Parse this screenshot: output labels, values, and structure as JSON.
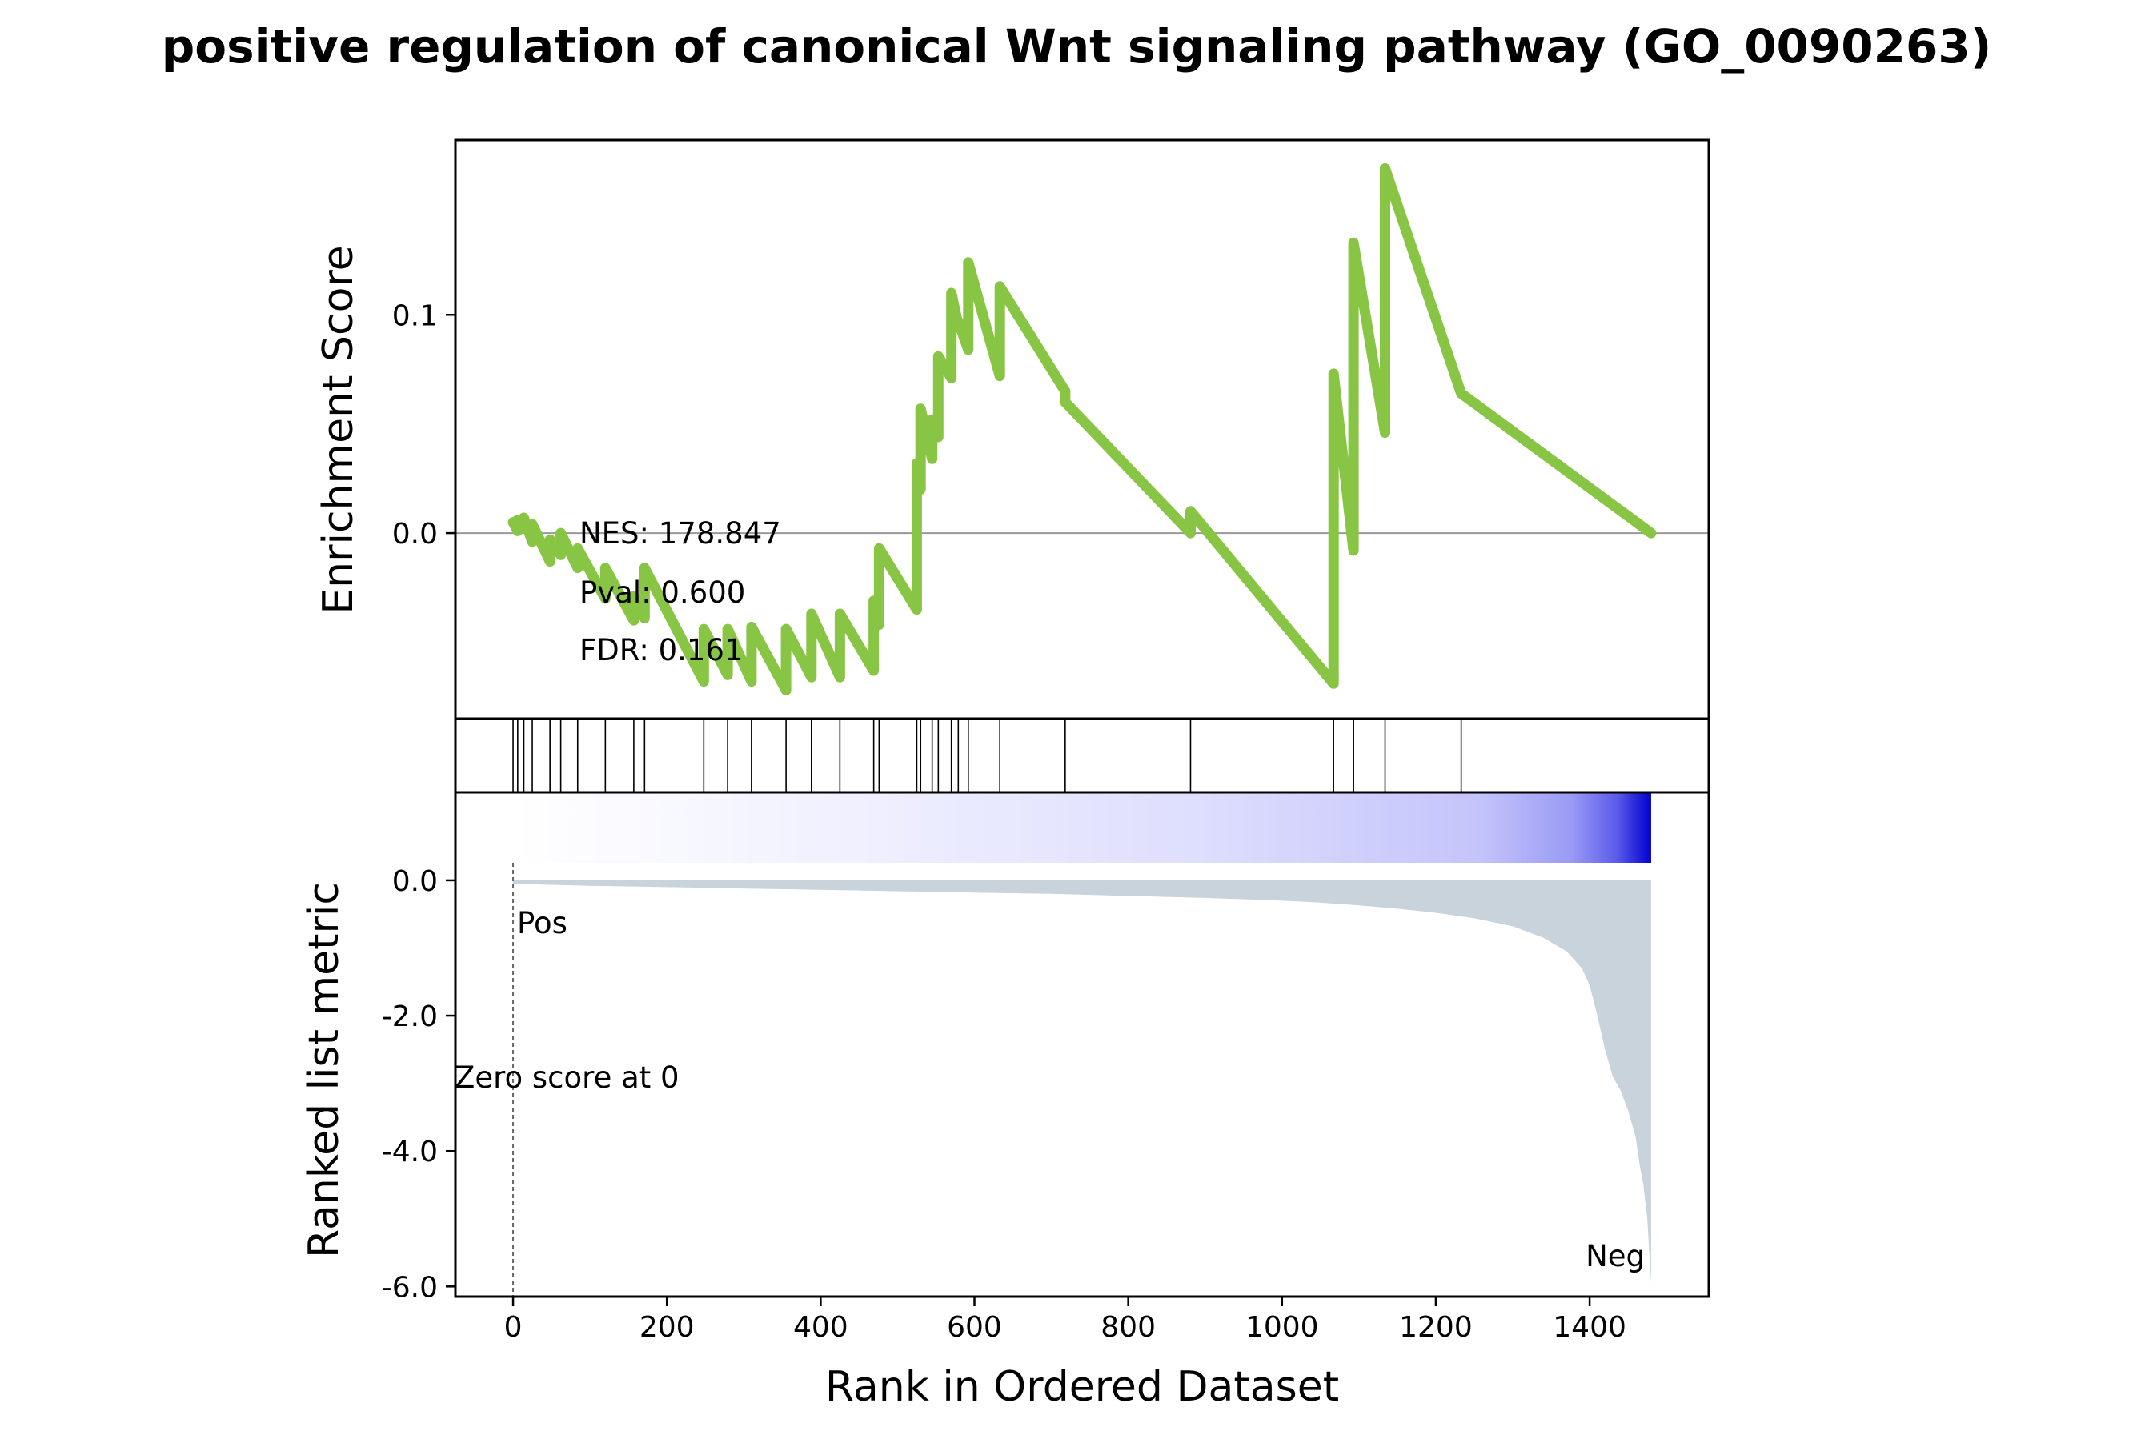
{
  "chart_data": {
    "type": "line",
    "title": "positive regulation of canonical Wnt signaling pathway (GO_0090263)",
    "xlabel": "Rank in Ordered Dataset",
    "xlim": [
      -75,
      1555
    ],
    "x_ticks": [
      0,
      200,
      400,
      600,
      800,
      1000,
      1200,
      1400
    ],
    "x_tick_labels": [
      "0",
      "200",
      "400",
      "600",
      "800",
      "1000",
      "1200",
      "1400"
    ],
    "n_genes": 1480,
    "enrichment": {
      "ylabel": "Enrichment Score",
      "ylim": [
        -0.085,
        0.18
      ],
      "y_ticks": [
        0.0,
        0.1
      ],
      "y_tick_labels": [
        "0.0",
        "0.1"
      ],
      "color": "#88c544",
      "zero_line_color": "#999999",
      "x": [
        0,
        6,
        6,
        14,
        14,
        25,
        25,
        48,
        48,
        62,
        62,
        84,
        84,
        120,
        120,
        157,
        157,
        171,
        171,
        248,
        248,
        279,
        279,
        310,
        310,
        355,
        355,
        388,
        388,
        425,
        425,
        469,
        469,
        476,
        476,
        525,
        525,
        530,
        530,
        545,
        545,
        553,
        553,
        570,
        570,
        579,
        579,
        592,
        592,
        633,
        633,
        718,
        718,
        881,
        881,
        1067,
        1067,
        1093,
        1093,
        1134,
        1134,
        1233,
        1233,
        1480
      ],
      "y": [
        0.005,
        0.001,
        0.006,
        0.002,
        0.007,
        -0.004,
        0.004,
        -0.013,
        -0.003,
        -0.01,
        0.0,
        -0.016,
        -0.007,
        -0.03,
        -0.016,
        -0.04,
        -0.029,
        -0.039,
        -0.016,
        -0.068,
        -0.044,
        -0.065,
        -0.044,
        -0.068,
        -0.043,
        -0.072,
        -0.044,
        -0.066,
        -0.037,
        -0.066,
        -0.037,
        -0.063,
        -0.031,
        -0.042,
        -0.007,
        -0.035,
        0.032,
        0.02,
        0.057,
        0.034,
        0.052,
        0.044,
        0.081,
        0.071,
        0.11,
        0.095,
        0.097,
        0.084,
        0.124,
        0.072,
        0.113,
        0.065,
        0.06,
        0.0,
        0.01,
        -0.069,
        0.073,
        -0.008,
        0.133,
        0.046,
        0.167,
        0.064,
        0.064,
        0.0
      ],
      "stats": [
        "NES: 178.847",
        "Pval: 0.600",
        "FDR: 0.161"
      ]
    },
    "hits": {
      "positions": [
        0,
        6,
        14,
        25,
        48,
        62,
        84,
        120,
        157,
        171,
        248,
        279,
        310,
        355,
        388,
        425,
        469,
        476,
        525,
        530,
        545,
        553,
        570,
        579,
        592,
        633,
        718,
        881,
        1067,
        1093,
        1134,
        1233
      ]
    },
    "ranked_metric": {
      "ylabel": "Ranked list metric",
      "ylim": [
        -6.15,
        1.3
      ],
      "y_ticks": [
        0.0,
        -2.0,
        -4.0,
        -6.0
      ],
      "y_tick_labels": [
        "0.0",
        "-2.0",
        "-4.0",
        "-6.0"
      ],
      "fill_color": "#c8d3dc",
      "colorbar_low": "#ffffff",
      "colorbar_high": "#0000cd",
      "x": [
        0,
        100,
        200,
        300,
        400,
        500,
        600,
        700,
        800,
        900,
        1000,
        1050,
        1100,
        1150,
        1200,
        1250,
        1300,
        1340,
        1370,
        1390,
        1400,
        1410,
        1420,
        1430,
        1440,
        1450,
        1460,
        1465,
        1470,
        1475,
        1480
      ],
      "values": [
        -0.05,
        -0.08,
        -0.1,
        -0.12,
        -0.14,
        -0.16,
        -0.18,
        -0.2,
        -0.23,
        -0.26,
        -0.3,
        -0.33,
        -0.37,
        -0.42,
        -0.48,
        -0.56,
        -0.68,
        -0.85,
        -1.05,
        -1.3,
        -1.55,
        -2.0,
        -2.5,
        -2.9,
        -3.1,
        -3.4,
        -3.8,
        -4.2,
        -4.5,
        -5.0,
        -5.95
      ],
      "zero_score_label": "Zero score at 0",
      "pos_label": "Pos",
      "pos_color": "#ff0000",
      "neg_label": "Neg",
      "neg_color": "#0000ff"
    }
  }
}
